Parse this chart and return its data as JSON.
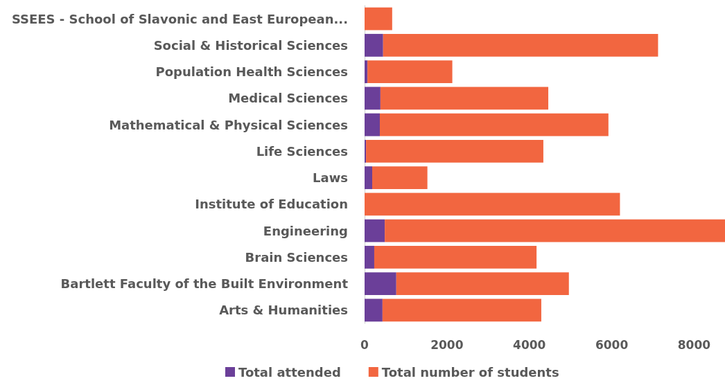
{
  "chart_data": {
    "type": "bar",
    "orientation": "horizontal",
    "stacked": true,
    "categories": [
      "SSEES - School of Slavonic and East European...",
      "Social & Historical Sciences",
      "Population Health Sciences",
      "Medical Sciences",
      "Mathematical & Physical Sciences",
      "Life Sciences",
      "Laws",
      "Institute of Education",
      "Engineering",
      "Brain Sciences",
      "Bartlett Faculty of the Built Environment",
      "Arts & Humanities"
    ],
    "series": [
      {
        "name": "Total attended",
        "color": "#6b3f99",
        "values": [
          0,
          450,
          70,
          385,
          370,
          35,
          185,
          0,
          490,
          235,
          770,
          435
        ]
      },
      {
        "name": "Total number of students",
        "color": "#f26640",
        "values": [
          670,
          6675,
          2060,
          4075,
          5550,
          4305,
          1340,
          6200,
          8260,
          3940,
          4190,
          3855
        ]
      }
    ],
    "xlim": [
      0,
      8750
    ],
    "xticks": [
      0,
      2000,
      4000,
      6000,
      8000
    ],
    "grid": false,
    "legend": "bottom"
  }
}
